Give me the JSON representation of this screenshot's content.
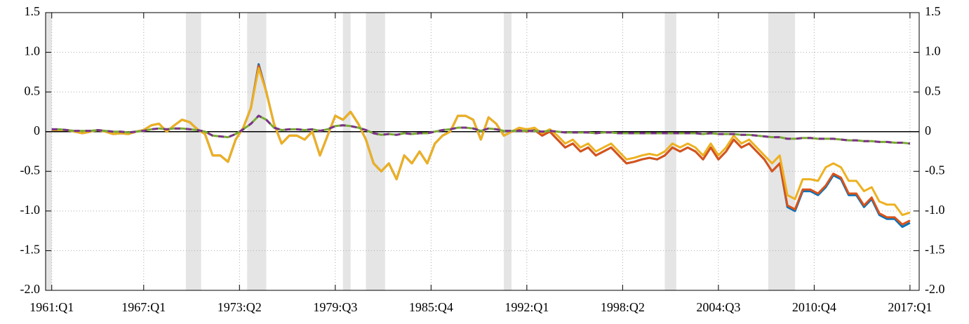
{
  "chart_data": {
    "type": "line",
    "x": [
      1961,
      1961.5,
      1962,
      1962.5,
      1963,
      1963.5,
      1964,
      1964.5,
      1965,
      1965.5,
      1966,
      1966.5,
      1967,
      1967.5,
      1968,
      1968.5,
      1969,
      1969.5,
      1970,
      1970.5,
      1971,
      1971.5,
      1972,
      1972.5,
      1973,
      1973.5,
      1974,
      1974.5,
      1975,
      1975.5,
      1976,
      1976.5,
      1977,
      1977.5,
      1978,
      1978.5,
      1979,
      1979.5,
      1980,
      1980.5,
      1981,
      1981.5,
      1982,
      1982.5,
      1983,
      1983.5,
      1984,
      1984.5,
      1985,
      1985.5,
      1986,
      1986.5,
      1987,
      1987.5,
      1988,
      1988.5,
      1989,
      1989.5,
      1990,
      1990.5,
      1991,
      1991.5,
      1992,
      1992.5,
      1993,
      1993.5,
      1994,
      1994.5,
      1995,
      1995.5,
      1996,
      1996.5,
      1997,
      1997.5,
      1998,
      1998.5,
      1999,
      1999.5,
      2000,
      2000.5,
      2001,
      2001.5,
      2002,
      2002.5,
      2003,
      2003.5,
      2004,
      2004.5,
      2005,
      2005.5,
      2006,
      2006.5,
      2007,
      2007.5,
      2008,
      2008.5,
      2009,
      2009.5,
      2010,
      2010.5,
      2011,
      2011.5,
      2012,
      2012.5,
      2013,
      2013.5,
      2014,
      2014.5,
      2015,
      2015.5,
      2016,
      2016.5,
      2017
    ],
    "series": [
      {
        "color": "#0072BD",
        "values": [
          0.02,
          0.02,
          0.02,
          0,
          -0.02,
          0,
          0.02,
          0,
          -0.03,
          -0.02,
          -0.03,
          0,
          0.02,
          0.08,
          0.1,
          0,
          0.08,
          0.15,
          0.12,
          0.03,
          -0.03,
          -0.3,
          -0.3,
          -0.38,
          -0.1,
          0.05,
          0.3,
          0.85,
          0.5,
          0.1,
          -0.15,
          -0.05,
          -0.05,
          -0.1,
          0,
          -0.3,
          -0.05,
          0.2,
          0.15,
          0.25,
          0.1,
          -0.1,
          -0.4,
          -0.5,
          -0.4,
          -0.6,
          -0.3,
          -0.4,
          -0.25,
          -0.4,
          -0.15,
          -0.05,
          0,
          0.2,
          0.2,
          0.15,
          -0.1,
          0.18,
          0.1,
          -0.05,
          0,
          0.02,
          0,
          0.02,
          -0.05,
          0,
          -0.1,
          -0.2,
          -0.15,
          -0.25,
          -0.2,
          -0.3,
          -0.25,
          -0.2,
          -0.3,
          -0.4,
          -0.38,
          -0.35,
          -0.33,
          -0.35,
          -0.3,
          -0.2,
          -0.25,
          -0.2,
          -0.25,
          -0.35,
          -0.2,
          -0.35,
          -0.25,
          -0.1,
          -0.2,
          -0.15,
          -0.25,
          -0.35,
          -0.5,
          -0.4,
          -0.95,
          -1.0,
          -0.75,
          -0.75,
          -0.8,
          -0.7,
          -0.55,
          -0.6,
          -0.8,
          -0.8,
          -0.95,
          -0.85,
          -1.05,
          -1.1,
          -1.1,
          -1.2,
          -1.15
        ]
      },
      {
        "color": "#D95319",
        "values": [
          0.02,
          0.02,
          0.02,
          0,
          -0.02,
          0,
          0.02,
          0,
          -0.03,
          -0.02,
          -0.03,
          0,
          0.02,
          0.08,
          0.1,
          0,
          0.08,
          0.15,
          0.12,
          0.03,
          -0.03,
          -0.3,
          -0.3,
          -0.38,
          -0.1,
          0.05,
          0.3,
          0.83,
          0.5,
          0.1,
          -0.15,
          -0.05,
          -0.05,
          -0.1,
          0,
          -0.3,
          -0.05,
          0.2,
          0.15,
          0.25,
          0.1,
          -0.1,
          -0.4,
          -0.5,
          -0.4,
          -0.6,
          -0.3,
          -0.4,
          -0.25,
          -0.4,
          -0.15,
          -0.05,
          0,
          0.2,
          0.2,
          0.15,
          -0.1,
          0.18,
          0.1,
          -0.05,
          0,
          0.02,
          0,
          0.02,
          -0.05,
          0,
          -0.1,
          -0.2,
          -0.15,
          -0.25,
          -0.2,
          -0.3,
          -0.25,
          -0.2,
          -0.3,
          -0.4,
          -0.38,
          -0.35,
          -0.33,
          -0.35,
          -0.3,
          -0.2,
          -0.25,
          -0.2,
          -0.25,
          -0.35,
          -0.2,
          -0.35,
          -0.25,
          -0.1,
          -0.2,
          -0.15,
          -0.25,
          -0.35,
          -0.5,
          -0.4,
          -0.93,
          -0.98,
          -0.73,
          -0.73,
          -0.78,
          -0.68,
          -0.53,
          -0.58,
          -0.78,
          -0.78,
          -0.93,
          -0.83,
          -1.03,
          -1.08,
          -1.08,
          -1.17,
          -1.12
        ]
      },
      {
        "color": "#EDB120",
        "values": [
          0.02,
          0.02,
          0.02,
          0,
          -0.02,
          0,
          0.02,
          0,
          -0.03,
          -0.02,
          -0.03,
          0,
          0.02,
          0.08,
          0.1,
          0,
          0.08,
          0.15,
          0.12,
          0.03,
          -0.03,
          -0.3,
          -0.3,
          -0.38,
          -0.1,
          0.05,
          0.3,
          0.8,
          0.5,
          0.1,
          -0.15,
          -0.05,
          -0.05,
          -0.1,
          0,
          -0.3,
          -0.05,
          0.2,
          0.15,
          0.25,
          0.1,
          -0.1,
          -0.4,
          -0.5,
          -0.4,
          -0.6,
          -0.3,
          -0.4,
          -0.25,
          -0.4,
          -0.15,
          -0.05,
          0,
          0.2,
          0.2,
          0.15,
          -0.1,
          0.18,
          0.1,
          -0.05,
          0,
          0.05,
          0.03,
          0.05,
          -0.02,
          0.03,
          -0.05,
          -0.15,
          -0.1,
          -0.2,
          -0.15,
          -0.25,
          -0.2,
          -0.15,
          -0.25,
          -0.35,
          -0.33,
          -0.3,
          -0.28,
          -0.3,
          -0.25,
          -0.15,
          -0.2,
          -0.15,
          -0.2,
          -0.3,
          -0.15,
          -0.3,
          -0.2,
          -0.05,
          -0.15,
          -0.1,
          -0.2,
          -0.3,
          -0.4,
          -0.3,
          -0.8,
          -0.85,
          -0.6,
          -0.6,
          -0.62,
          -0.45,
          -0.4,
          -0.45,
          -0.62,
          -0.62,
          -0.75,
          -0.7,
          -0.88,
          -0.92,
          -0.92,
          -1.05,
          -1.02
        ]
      },
      {
        "color": "#77AC30",
        "values": [
          0.03,
          0.03,
          0.02,
          0.01,
          0.01,
          0.01,
          0.02,
          0.01,
          0,
          0,
          -0.01,
          0,
          0.01,
          0.03,
          0.04,
          0.03,
          0.04,
          0.04,
          0.03,
          0.02,
          0,
          -0.05,
          -0.06,
          -0.07,
          -0.03,
          0.03,
          0.1,
          0.2,
          0.15,
          0.05,
          0.02,
          0.03,
          0.03,
          0.02,
          0.03,
          0.01,
          0.03,
          0.07,
          0.08,
          0.07,
          0.05,
          0.02,
          -0.02,
          -0.04,
          -0.03,
          -0.04,
          -0.02,
          -0.03,
          -0.02,
          -0.02,
          0,
          0.02,
          0.03,
          0.05,
          0.05,
          0.04,
          0.01,
          0.04,
          0.03,
          0.01,
          0.01,
          0.01,
          0.01,
          0.01,
          0,
          0.01,
          0,
          -0.01,
          -0.01,
          -0.01,
          -0.01,
          -0.02,
          -0.01,
          -0.01,
          -0.02,
          -0.02,
          -0.02,
          -0.02,
          -0.02,
          -0.02,
          -0.02,
          -0.02,
          -0.02,
          -0.02,
          -0.02,
          -0.03,
          -0.02,
          -0.03,
          -0.03,
          -0.03,
          -0.04,
          -0.04,
          -0.05,
          -0.06,
          -0.07,
          -0.07,
          -0.09,
          -0.09,
          -0.08,
          -0.08,
          -0.09,
          -0.09,
          -0.09,
          -0.1,
          -0.11,
          -0.11,
          -0.12,
          -0.12,
          -0.13,
          -0.13,
          -0.14,
          -0.14,
          -0.15
        ]
      },
      {
        "color": "#7E2F8E",
        "dashed": true,
        "values": [
          0.03,
          0.03,
          0.02,
          0.01,
          0.01,
          0.01,
          0.02,
          0.01,
          0,
          0,
          -0.01,
          0,
          0.01,
          0.03,
          0.04,
          0.03,
          0.04,
          0.04,
          0.03,
          0.02,
          0,
          -0.05,
          -0.06,
          -0.07,
          -0.03,
          0.03,
          0.1,
          0.2,
          0.15,
          0.05,
          0.02,
          0.03,
          0.03,
          0.02,
          0.03,
          0.01,
          0.03,
          0.07,
          0.08,
          0.07,
          0.05,
          0.02,
          -0.02,
          -0.04,
          -0.03,
          -0.04,
          -0.02,
          -0.03,
          -0.02,
          -0.02,
          0,
          0.02,
          0.03,
          0.05,
          0.05,
          0.04,
          0.01,
          0.04,
          0.03,
          0.01,
          0.01,
          0.01,
          0.01,
          0.01,
          0,
          0.01,
          0,
          -0.01,
          -0.01,
          -0.01,
          -0.01,
          -0.02,
          -0.01,
          -0.01,
          -0.02,
          -0.02,
          -0.02,
          -0.02,
          -0.02,
          -0.02,
          -0.02,
          -0.02,
          -0.02,
          -0.02,
          -0.02,
          -0.03,
          -0.02,
          -0.03,
          -0.03,
          -0.03,
          -0.04,
          -0.04,
          -0.05,
          -0.06,
          -0.07,
          -0.07,
          -0.09,
          -0.09,
          -0.08,
          -0.08,
          -0.09,
          -0.09,
          -0.09,
          -0.1,
          -0.11,
          -0.11,
          -0.12,
          -0.12,
          -0.13,
          -0.13,
          -0.14,
          -0.14,
          -0.15
        ]
      }
    ],
    "shading": [
      [
        1960.25,
        1961.0
      ],
      [
        1969.75,
        1970.75
      ],
      [
        1973.75,
        1975.0
      ],
      [
        1980.0,
        1980.5
      ],
      [
        1981.5,
        1982.75
      ],
      [
        1990.5,
        1991.0
      ],
      [
        2001.0,
        2001.75
      ],
      [
        2007.75,
        2009.5
      ]
    ],
    "shading_color": "#e5e5e5",
    "xlim": [
      1960.6,
      2017.6
    ],
    "xticks": [
      {
        "value": 1961,
        "label": "1961:Q1"
      },
      {
        "value": 1967,
        "label": "1967:Q1"
      },
      {
        "value": 1973.25,
        "label": "1973:Q2"
      },
      {
        "value": 1979.5,
        "label": "1979:Q3"
      },
      {
        "value": 1985.75,
        "label": "1985:Q4"
      },
      {
        "value": 1992,
        "label": "1992:Q1"
      },
      {
        "value": 1998.25,
        "label": "1998:Q2"
      },
      {
        "value": 2004.5,
        "label": "2004:Q3"
      },
      {
        "value": 2010.75,
        "label": "2010:Q4"
      },
      {
        "value": 2017,
        "label": "2017:Q1"
      }
    ],
    "ylim": [
      -2.0,
      1.5
    ],
    "yticks": [
      {
        "value": -2,
        "label": "-2.0"
      },
      -1.5,
      {
        "value": -1,
        "label": "-1.0"
      },
      -0.5,
      0,
      0.5,
      {
        "value": 1,
        "label": "1.0"
      },
      1.5
    ],
    "grid": true,
    "zero_line": true
  }
}
